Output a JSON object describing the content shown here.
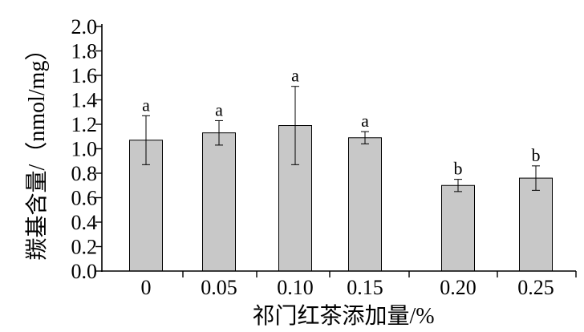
{
  "chart_data": {
    "type": "bar",
    "title": "",
    "xlabel": "祁门红茶添加量/%",
    "ylabel": "羰基含量/（nmol/mg）",
    "categories": [
      "0",
      "0.05",
      "0.10",
      "0.15",
      "0.20",
      "0.25"
    ],
    "values": [
      1.07,
      1.13,
      1.19,
      1.09,
      0.7,
      0.76
    ],
    "error": [
      0.2,
      0.1,
      0.32,
      0.05,
      0.05,
      0.1
    ],
    "significance_letters": [
      "a",
      "a",
      "a",
      "a",
      "b",
      "b"
    ],
    "ylim": [
      0.0,
      2.0
    ],
    "yticks": [
      "0.0",
      "0.2",
      "0.4",
      "0.6",
      "0.8",
      "1.0",
      "1.2",
      "1.4",
      "1.6",
      "1.8",
      "2.0"
    ],
    "grid": false,
    "colors": {
      "bar_fill": "#c8c8c8",
      "bar_edge": "#000000",
      "error_bar": "#000000"
    }
  }
}
